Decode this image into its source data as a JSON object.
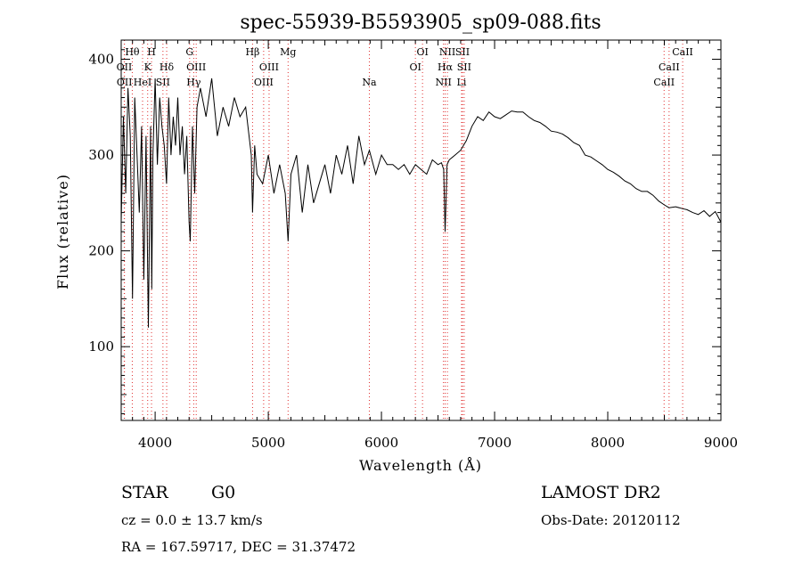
{
  "chart_data": {
    "type": "line",
    "title": "spec-55939-B5593905_sp09-088.fits",
    "xlabel": "Wavelength (Å)",
    "ylabel": "Flux (relative)",
    "xlim": [
      3700,
      9000
    ],
    "ylim": [
      23,
      420
    ],
    "xticks": [
      4000,
      5000,
      6000,
      7000,
      8000,
      9000
    ],
    "yticks": [
      100,
      200,
      300,
      400
    ],
    "grid": false,
    "line_color": "#000000",
    "marker_color": "#e03030",
    "series": [
      {
        "name": "",
        "x": [
          3700,
          3720,
          3740,
          3760,
          3780,
          3800,
          3820,
          3840,
          3860,
          3880,
          3900,
          3920,
          3940,
          3960,
          3970,
          3980,
          4000,
          4020,
          4040,
          4060,
          4080,
          4101,
          4120,
          4140,
          4160,
          4180,
          4200,
          4220,
          4240,
          4260,
          4280,
          4300,
          4310,
          4330,
          4350,
          4370,
          4400,
          4450,
          4500,
          4550,
          4600,
          4650,
          4700,
          4750,
          4800,
          4850,
          4861,
          4880,
          4900,
          4950,
          5000,
          5050,
          5100,
          5150,
          5175,
          5200,
          5250,
          5300,
          5350,
          5400,
          5450,
          5500,
          5550,
          5600,
          5650,
          5700,
          5750,
          5800,
          5850,
          5893,
          5950,
          6000,
          6050,
          6100,
          6150,
          6200,
          6250,
          6300,
          6350,
          6400,
          6450,
          6500,
          6530,
          6550,
          6563,
          6580,
          6600,
          6650,
          6700,
          6750,
          6800,
          6850,
          6900,
          6950,
          7000,
          7050,
          7100,
          7150,
          7200,
          7250,
          7300,
          7350,
          7400,
          7450,
          7500,
          7550,
          7600,
          7650,
          7700,
          7750,
          7800,
          7850,
          7900,
          7950,
          8000,
          8050,
          8100,
          8150,
          8200,
          8250,
          8300,
          8350,
          8400,
          8450,
          8500,
          8542,
          8600,
          8662,
          8700,
          8750,
          8800,
          8850,
          8900,
          8950,
          9000
        ],
        "y": [
          230,
          340,
          260,
          370,
          320,
          150,
          360,
          300,
          240,
          330,
          170,
          320,
          120,
          330,
          160,
          300,
          380,
          290,
          360,
          330,
          310,
          270,
          360,
          300,
          340,
          310,
          360,
          300,
          330,
          280,
          320,
          230,
          210,
          330,
          260,
          350,
          370,
          340,
          380,
          320,
          350,
          330,
          360,
          340,
          350,
          300,
          240,
          310,
          280,
          270,
          300,
          260,
          290,
          260,
          210,
          280,
          300,
          240,
          290,
          250,
          270,
          290,
          260,
          300,
          280,
          310,
          270,
          320,
          290,
          305,
          280,
          300,
          290,
          290,
          285,
          290,
          280,
          290,
          285,
          280,
          295,
          290,
          292,
          285,
          220,
          290,
          295,
          300,
          305,
          315,
          330,
          340,
          336,
          345,
          340,
          338,
          342,
          346,
          345,
          345,
          340,
          336,
          334,
          330,
          325,
          324,
          322,
          318,
          313,
          310,
          300,
          298,
          294,
          290,
          285,
          282,
          278,
          273,
          270,
          265,
          262,
          262,
          258,
          252,
          248,
          245,
          246,
          244,
          243,
          240,
          238,
          242,
          236,
          241,
          230
        ]
      }
    ],
    "spectral_lines": [
      {
        "label": "Hθ",
        "x": 3798,
        "row": 1
      },
      {
        "label": "OII",
        "x": 3727,
        "row": 2
      },
      {
        "label": "OII",
        "x": 3729,
        "row": 3
      },
      {
        "label": "HeI",
        "x": 3889,
        "row": 3
      },
      {
        "label": "H",
        "x": 3968,
        "row": 1
      },
      {
        "label": "K",
        "x": 3934,
        "row": 2
      },
      {
        "label": "Hδ",
        "x": 4102,
        "row": 2
      },
      {
        "label": "SII",
        "x": 4069,
        "row": 3
      },
      {
        "label": "G",
        "x": 4305,
        "row": 1
      },
      {
        "label": "OIII",
        "x": 4363,
        "row": 2
      },
      {
        "label": "Hγ",
        "x": 4341,
        "row": 3
      },
      {
        "label": "Hβ",
        "x": 4861,
        "row": 1
      },
      {
        "label": "OIII",
        "x": 5007,
        "row": 2
      },
      {
        "label": "OIII",
        "x": 4959,
        "row": 3
      },
      {
        "label": "Mg",
        "x": 5175,
        "row": 1
      },
      {
        "label": "Na",
        "x": 5893,
        "row": 3
      },
      {
        "label": "OI",
        "x": 6363,
        "row": 1
      },
      {
        "label": "OI",
        "x": 6300,
        "row": 2
      },
      {
        "label": "NII",
        "x": 6583,
        "row": 1
      },
      {
        "label": "SII",
        "x": 6716,
        "row": 1
      },
      {
        "label": "Hα",
        "x": 6563,
        "row": 2
      },
      {
        "label": "SII",
        "x": 6731,
        "row": 2
      },
      {
        "label": "NII",
        "x": 6548,
        "row": 3
      },
      {
        "label": "Li",
        "x": 6708,
        "row": 3
      },
      {
        "label": "CaII",
        "x": 8662,
        "row": 1
      },
      {
        "label": "CaII",
        "x": 8542,
        "row": 2
      },
      {
        "label": "CaII",
        "x": 8498,
        "row": 3
      }
    ]
  },
  "info": {
    "object_class": "STAR",
    "subclass": "G0",
    "survey": "LAMOST DR2",
    "redshift": "cz = 0.0 ± 13.7 km/s",
    "obs_date": "Obs-Date: 20120112",
    "coords": "RA = 167.59717, DEC =  31.37472"
  }
}
